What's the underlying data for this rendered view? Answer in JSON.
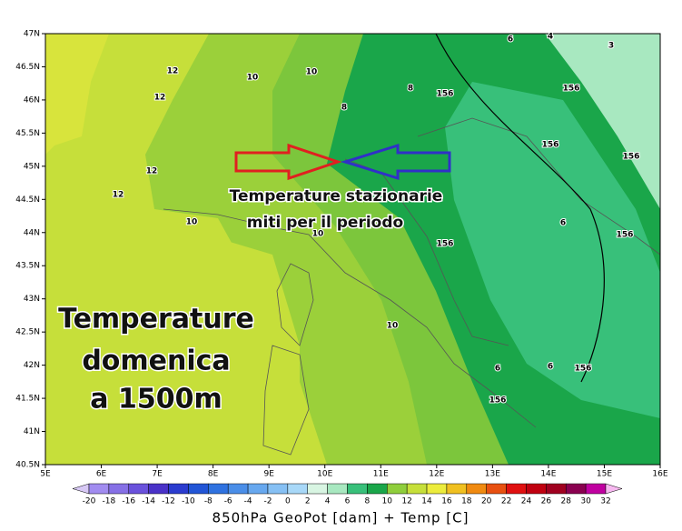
{
  "map": {
    "caption": "850hPa GeoPot [dam] + Temp [C]",
    "lat_labels": [
      "47N",
      "46.5N",
      "46N",
      "45.5N",
      "45N",
      "44.5N",
      "44N",
      "43.5N",
      "43N",
      "42.5N",
      "42N",
      "41.5N",
      "41N",
      "40.5N"
    ],
    "lon_labels": [
      "5E",
      "6E",
      "7E",
      "8E",
      "9E",
      "10E",
      "11E",
      "12E",
      "13E",
      "14E",
      "15E",
      "16E"
    ],
    "colorbar_labels": [
      -20,
      -18,
      -16,
      -14,
      -12,
      -10,
      -8,
      -6,
      -4,
      -2,
      0,
      2,
      4,
      6,
      8,
      10,
      12,
      14,
      16,
      18,
      20,
      22,
      24,
      26,
      28,
      30,
      32
    ],
    "colorbar_colors": [
      "#d7c8f5",
      "#a18cf0",
      "#8670e6",
      "#6a52dc",
      "#4a32c8",
      "#2b3ccf",
      "#2255d6",
      "#2f72e0",
      "#4a8ee8",
      "#67a8ef",
      "#86c0f4",
      "#a8d8f8",
      "#d8f5e2",
      "#a8e8c0",
      "#38c07a",
      "#1aa64a",
      "#8fce3c",
      "#c6df3a",
      "#ecec3c",
      "#f0c020",
      "#f08a10",
      "#e85010",
      "#e01010",
      "#c00010",
      "#a00020",
      "#8a0050",
      "#c000a0",
      "#f040e0",
      "#f7b8f0"
    ],
    "annotations": {
      "arrow_text": [
        "Temperature stazionarie",
        "miti per il periodo"
      ],
      "main_text": [
        "Temperature",
        "domenica",
        "a 1500m"
      ]
    },
    "contour_labels": [
      "12",
      "12",
      "12",
      "12",
      "10",
      "10",
      "10",
      "10",
      "10",
      "8",
      "8",
      "6",
      "6",
      "6",
      "6",
      "4",
      "3",
      "156",
      "156",
      "156",
      "156",
      "156",
      "156",
      "156",
      "156"
    ]
  }
}
